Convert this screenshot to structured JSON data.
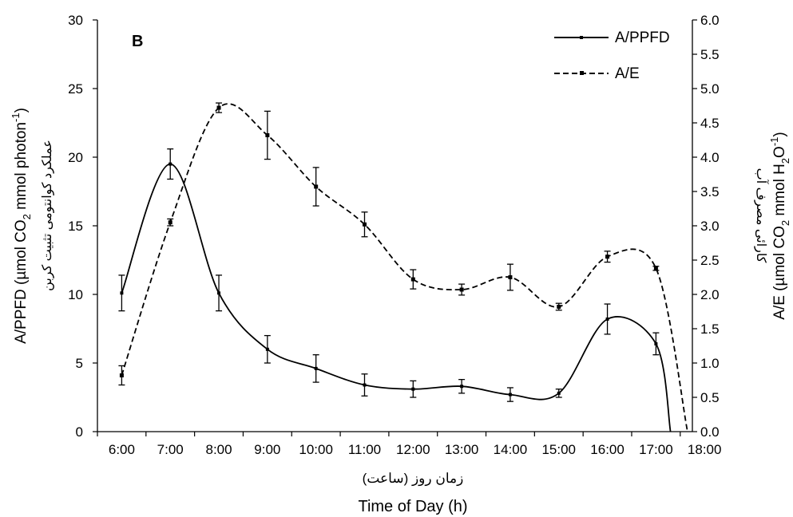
{
  "chart_data": {
    "type": "line",
    "panel_label": "B",
    "x_ticks": [
      "6:00",
      "7:00",
      "8:00",
      "9:00",
      "10:00",
      "11:00",
      "12:00",
      "13:00",
      "14:00",
      "15:00",
      "16:00",
      "17:00",
      "18:00"
    ],
    "xlabel_fa": "زمان روز (ساعت)",
    "xlabel": "Time of Day (h)",
    "ylabel_left_main": "A/PPFD (µmol CO",
    "ylabel_left_sub": "2",
    "ylabel_left_mid": " mmol photon",
    "ylabel_left_sup": "-1",
    "ylabel_left_end": ")",
    "ylabel_left_fa": "عملکرد کوانتومی تثبیت کربن",
    "ylabel_right_main": "A/E (µmol CO",
    "ylabel_right_sub1": "2",
    "ylabel_right_mid": " mmol H",
    "ylabel_right_sub2": "2",
    "ylabel_right_mid2": "O",
    "ylabel_right_sup": "-1",
    "ylabel_right_end": ")",
    "ylabel_right_fa": "کارائی مصرف آب",
    "ylim_left": [
      0,
      30
    ],
    "yticks_left": [
      "0",
      "5",
      "10",
      "15",
      "20",
      "25",
      "30"
    ],
    "ylim_right": [
      0,
      6
    ],
    "yticks_right": [
      "0.0",
      "0.5",
      "1.0",
      "1.5",
      "2.0",
      "2.5",
      "3.0",
      "3.5",
      "4.0",
      "4.5",
      "5.0",
      "5.5",
      "6.0"
    ],
    "legend_position": "top-right",
    "series": [
      {
        "name": "A/PPFD",
        "axis": "left",
        "line_style": "solid",
        "x": [
          6.5,
          7.5,
          8.5,
          9.5,
          10.5,
          11.5,
          12.5,
          13.5,
          14.5,
          15.5,
          16.5,
          17.5
        ],
        "y": [
          10.1,
          19.5,
          10.1,
          6.0,
          4.6,
          3.4,
          3.1,
          3.3,
          2.7,
          2.8,
          8.2,
          6.4
        ],
        "error": [
          1.3,
          1.1,
          1.3,
          1.0,
          1.0,
          0.8,
          0.6,
          0.5,
          0.5,
          0.3,
          1.1,
          0.8
        ],
        "curve_end": [
          17.8,
          0
        ]
      },
      {
        "name": "A/E",
        "axis": "right",
        "line_style": "dashed",
        "x": [
          6.5,
          7.5,
          8.5,
          9.5,
          10.5,
          11.5,
          12.5,
          13.5,
          14.5,
          15.5,
          16.5,
          17.5
        ],
        "y": [
          0.82,
          3.05,
          4.72,
          4.32,
          3.57,
          3.02,
          2.22,
          2.07,
          2.25,
          1.82,
          2.55,
          2.38
        ],
        "error": [
          0.14,
          0.05,
          0.07,
          0.35,
          0.28,
          0.18,
          0.14,
          0.08,
          0.19,
          0.05,
          0.08,
          0.03
        ],
        "curve_end": [
          18.15,
          0
        ]
      }
    ]
  }
}
